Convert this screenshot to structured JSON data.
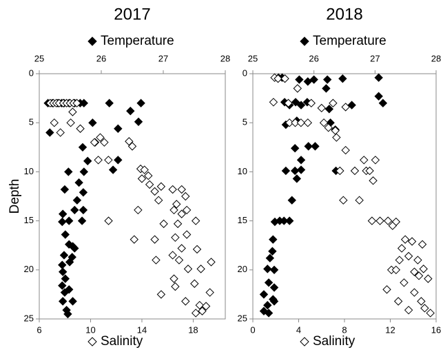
{
  "chart_data": [
    {
      "type": "scatter",
      "title": "2017",
      "y_label": "Depth",
      "y_reversed": true,
      "ylim": [
        0,
        25
      ],
      "yticks": [
        0,
        5,
        10,
        15,
        20,
        25
      ],
      "xlim": [
        6,
        20.5
      ],
      "xticks": [
        6,
        10,
        14,
        18
      ],
      "x2lim": [
        25,
        28
      ],
      "x2ticks": [
        25,
        26,
        27,
        28
      ],
      "series": [
        {
          "name": "Temperature",
          "color": "#000000",
          "filled": true,
          "axis": "x2",
          "x": [
            25.14,
            25.21,
            25.3,
            25.36,
            25.4,
            25.48,
            25.57,
            25.66,
            25.72,
            26.13,
            26.64,
            25.17,
            25.86,
            26.47,
            26.6,
            26.27,
            25.9,
            25.7,
            26.27,
            26.19,
            25.78,
            25.72,
            25.47,
            25.41,
            25.64,
            25.71,
            25.61,
            25.38,
            25.57,
            25.71,
            25.37,
            25.48,
            25.69,
            25.42,
            25.48,
            25.54,
            25.4,
            25.57,
            25.37,
            25.49,
            25.38,
            25.42,
            25.37,
            25.48,
            25.38,
            25.54,
            25.44,
            25.46,
            25.41,
            25.53
          ],
          "values": [
            3,
            3,
            3,
            3,
            3,
            3,
            3,
            3,
            3,
            3,
            3,
            6,
            5,
            3.8,
            4.9,
            5.6,
            7,
            7.5,
            8.8,
            9.8,
            8.9,
            10,
            10,
            11.8,
            11.1,
            12.1,
            12.9,
            14.3,
            13.9,
            13.9,
            15.1,
            15,
            15,
            16.4,
            17.4,
            17.6,
            18.5,
            17.8,
            19.5,
            19.2,
            20.2,
            20.9,
            21.6,
            22,
            23.2,
            23.2,
            24.1,
            24.5,
            22.3,
            18.7
          ]
        },
        {
          "name": "Salinity",
          "color": "#000000",
          "filled": false,
          "axis": "x",
          "x": [
            6.85,
            7.1,
            7.33,
            7.55,
            7.87,
            8.13,
            8.4,
            8.67,
            8.93,
            7.17,
            7.65,
            8.45,
            9.2,
            8.6,
            10.75,
            11.07,
            10.3,
            13,
            13.25,
            10.6,
            11.39,
            13.9,
            14.2,
            14.5,
            14,
            14.6,
            15,
            15.5,
            16.4,
            17.1,
            17.4,
            16.7,
            15.3,
            13.7,
            11.4,
            16.5,
            17.1,
            17.5,
            15.7,
            16.8,
            18.2,
            16.6,
            17.5,
            13.4,
            15,
            17.1,
            18.3,
            16.4,
            16.9,
            15.1,
            19.4,
            17.6,
            18.6,
            16.5,
            18.1,
            16.6,
            15.5,
            19.3,
            17.4,
            18.5,
            19,
            18.2,
            18.7
          ],
          "values": [
            3,
            3,
            3,
            3,
            3,
            3,
            3,
            3,
            3,
            5,
            6,
            5,
            5.6,
            3.9,
            6.5,
            7,
            7,
            6.9,
            7.4,
            8.8,
            8.8,
            9.7,
            9.8,
            10.4,
            10.7,
            11.3,
            12,
            11.5,
            11.8,
            11.8,
            12.5,
            13.3,
            12.9,
            13.9,
            15,
            13.9,
            14.3,
            13.9,
            15.3,
            15.3,
            15,
            16.7,
            16.4,
            16.9,
            16.9,
            17.8,
            17.9,
            18.5,
            19,
            19,
            19.2,
            19.9,
            19.9,
            20.9,
            21.4,
            21.7,
            22.5,
            22.3,
            23.2,
            23.6,
            23.7,
            24.4,
            24.2
          ]
        }
      ]
    },
    {
      "type": "scatter",
      "title": "2018",
      "y_reversed": true,
      "ylim": [
        0,
        25
      ],
      "yticks": [
        0,
        5,
        10,
        15,
        20,
        25
      ],
      "xlim": [
        0,
        16
      ],
      "xticks": [
        0,
        4,
        8,
        12,
        16
      ],
      "x2lim": [
        25,
        28
      ],
      "x2ticks": [
        25,
        26,
        27,
        28
      ],
      "series": [
        {
          "name": "Temperature",
          "color": "#000000",
          "filled": true,
          "axis": "x2",
          "x": [
            25.42,
            25.48,
            25.76,
            25.9,
            26.22,
            26.47,
            27.06,
            26.0,
            26.2,
            27.06,
            25.52,
            25.6,
            25.7,
            25.79,
            25.89,
            26.25,
            26.62,
            27.13,
            25.54,
            25.72,
            26.27,
            26.35,
            25.69,
            25.79,
            25.91,
            26.02,
            25.54,
            25.69,
            25.79,
            25.72,
            26.36,
            25.64,
            25.44,
            25.51,
            25.6,
            25.36,
            25.33,
            25.32,
            25.28,
            25.24,
            25.35,
            25.26,
            25.35,
            25.18,
            25.33,
            25.24,
            25.18,
            25.35,
            25.26
          ],
          "values": [
            0.4,
            0.4,
            0.6,
            0.8,
            0.6,
            0.5,
            0.4,
            0.6,
            1.5,
            2.3,
            2.9,
            3.2,
            2.9,
            3.2,
            2.9,
            3.6,
            3.2,
            3,
            5.2,
            4.8,
            5,
            5.7,
            7.6,
            8.8,
            7.4,
            7.4,
            9.9,
            9.9,
            9.8,
            10.7,
            9.9,
            12.9,
            15,
            15,
            15,
            15.1,
            16.9,
            18.1,
            18.8,
            19.9,
            20,
            21.3,
            21.8,
            22.5,
            23,
            23.6,
            24.2,
            23.2,
            24.4
          ]
        },
        {
          "name": "Salinity",
          "color": "#000000",
          "filled": false,
          "axis": "x",
          "x": [
            1.9,
            2.2,
            2.8,
            3.9,
            1.8,
            3.1,
            5.1,
            6,
            7,
            8.1,
            3.2,
            3.7,
            4.2,
            4.8,
            6.2,
            6.6,
            7.2,
            7.3,
            8.1,
            9.7,
            10.7,
            7.6,
            8.9,
            9.9,
            10.2,
            10.5,
            7.9,
            9.3,
            10.4,
            11.1,
            11.8,
            12.5,
            12.2,
            13.3,
            13.9,
            13,
            14.8,
            13.6,
            14.4,
            12.8,
            12.1,
            12.5,
            14.1,
            14.9,
            14.5,
            15.3,
            13.2,
            11.7,
            12.7,
            14.1,
            14.7,
            13.6,
            15.5,
            15
          ],
          "values": [
            0.4,
            0.5,
            0.5,
            1.5,
            2.9,
            3,
            3,
            3.5,
            3,
            3.4,
            5,
            5,
            5,
            5,
            5,
            5.5,
            5.8,
            6.5,
            7.8,
            8.8,
            8.8,
            9.9,
            9.9,
            9.9,
            9.9,
            10.9,
            12.9,
            12.9,
            15,
            15,
            15,
            15.1,
            15.5,
            16.9,
            17.1,
            17.8,
            17.4,
            18.6,
            19,
            19,
            20,
            20,
            20.2,
            19.9,
            20.6,
            20.9,
            21.3,
            22,
            23.2,
            22.3,
            23.2,
            24.1,
            24.4,
            23.9
          ]
        }
      ]
    }
  ]
}
